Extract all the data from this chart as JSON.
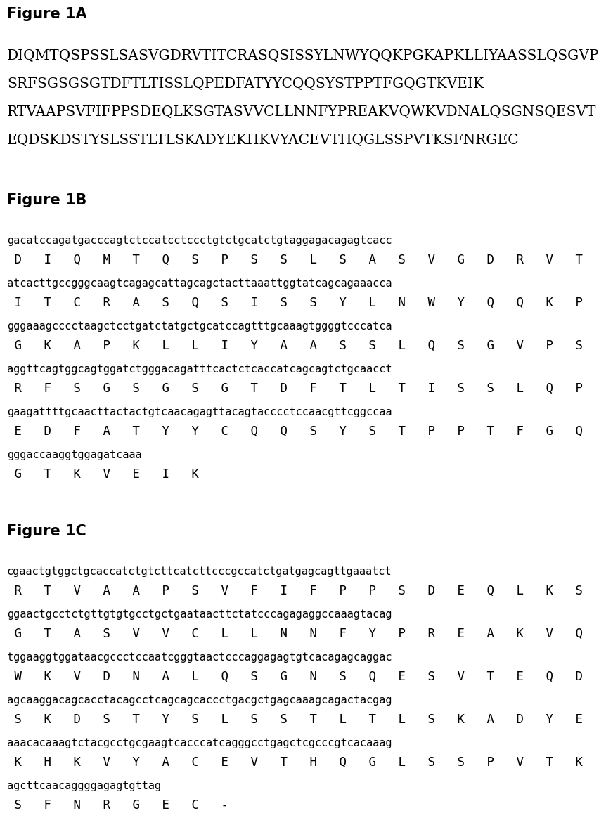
{
  "background_color": "#ffffff",
  "fig_width": 12.4,
  "fig_height": 15.74,
  "sections": [
    {
      "label": "Figure 1A",
      "content_type": "plain_text",
      "lines": [
        "DIQMTQSPSSLSASVGDRVTITCRASQSISSYLNWYQQKPGKAPKLLIYAASSLQSGVP",
        "SRFSGSGSGTDFTLTISSLQPEDFATYYCQQSYSTPPTFGQGTKVEIK",
        "RTVAAPSVFIFPPSDEQLKSGTASVVCLLNNFYPREAKVQWKVDNALQSGNSQESVT",
        "EQDSKDSTYSLSSTLTLSKADYEKHKVYACEVTHQGLSSPVTKSFNRGEC"
      ],
      "label_fontsize": 15,
      "text_fontsize": 14.5
    },
    {
      "label": "Figure 1B",
      "content_type": "dna_protein_pairs",
      "pairs": [
        {
          "dna": "gacatccagatgacccagtctccatcctccctgtctgcatctgtaggagacagagtcacc",
          "protein": " D   I   Q   M   T   Q   S   P   S   S   L   S   A   S   V   G   D   R   V   T"
        },
        {
          "dna": "atcacttgccgggcaagtcagagcattagcagctacttaaattggtatcagcagaaacca",
          "protein": " I   T   C   R   A   S   Q   S   I   S   S   Y   L   N   W   Y   Q   Q   K   P"
        },
        {
          "dna": "gggaaagcccctaagctcctgatctatgctgcatccagtttgcaaagtggggtcccatca",
          "protein": " G   K   A   P   K   L   L   I   Y   A   A   S   S   L   Q   S   G   V   P   S"
        },
        {
          "dna": "aggttcagtggcagtggatctgggacagatttcactctcaccatcagcagtctgcaacct",
          "protein": " R   F   S   G   S   G   S   G   T   D   F   T   L   T   I   S   S   L   Q   P"
        },
        {
          "dna": "gaagattttgcaacttactactgtcaacagagttacagtacccctccaacgttcggccaa",
          "protein": " E   D   F   A   T   Y   Y   C   Q   Q   S   Y   S   T   P   P   T   F   G   Q"
        },
        {
          "dna": "gggaccaaggtggagatcaaa",
          "protein": " G   T   K   V   E   I   K"
        }
      ],
      "label_fontsize": 15,
      "dna_fontsize": 11,
      "protein_fontsize": 12.5
    },
    {
      "label": "Figure 1C",
      "content_type": "dna_protein_pairs",
      "pairs": [
        {
          "dna": "cgaactgtggctgcaccatctgtcttcatcttcccgccatctgatgagcagttgaaatct",
          "protein": " R   T   V   A   A   P   S   V   F   I   F   P   P   S   D   E   Q   L   K   S"
        },
        {
          "dna": "ggaactgcctctgttgtgtgcctgctgaataacttctatcccagagaggccaaagtacag",
          "protein": " G   T   A   S   V   V   C   L   L   N   N   F   Y   P   R   E   A   K   V   Q"
        },
        {
          "dna": "tggaaggtggataacgccctccaatcgggtaactcccaggagagtgtcacagagcaggac",
          "protein": " W   K   V   D   N   A   L   Q   S   G   N   S   Q   E   S   V   T   E   Q   D"
        },
        {
          "dna": "agcaaggacagcacctacagcctcagcagcaccctgacgctgagcaaagcagactacgag",
          "protein": " S   K   D   S   T   Y   S   L   S   S   T   L   T   L   S   K   A   D   Y   E"
        },
        {
          "dna": "aaacacaaagtctacgcctgcgaagtcacccatcagggcctgagctcgcccgtcacaaag",
          "protein": " K   H   K   V   Y   A   C   E   V   T   H   Q   G   L   S   S   P   V   T   K"
        },
        {
          "dna": "agcttcaacaggggagagtgttag",
          "protein": " S   F   N   R   G   E   C   -"
        }
      ],
      "label_fontsize": 15,
      "dna_fontsize": 11,
      "protein_fontsize": 12.5
    }
  ]
}
